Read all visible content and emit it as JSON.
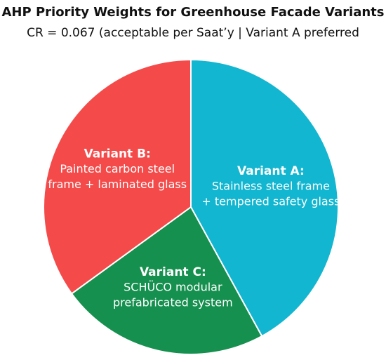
{
  "chart_data": {
    "type": "pie",
    "title": "AHP Priority Weights for Greenhouse Facade Variants",
    "subtitle": "CR = 0.067 (acceptable per Saat’y | Variant A preferred",
    "categories": [
      "Variant A:",
      "Variant C:",
      "Variant B:"
    ],
    "descriptions": [
      [
        "Stainless steel frame",
        "+ tempered safety glass"
      ],
      [
        "SCHÜCO modular",
        "prefabricated system"
      ],
      [
        "Painted carbon steel",
        "frame + laminated glass"
      ]
    ],
    "values": [
      42,
      23,
      35
    ],
    "colors": [
      "#12b6d0",
      "#16904f",
      "#f54a4a"
    ]
  }
}
